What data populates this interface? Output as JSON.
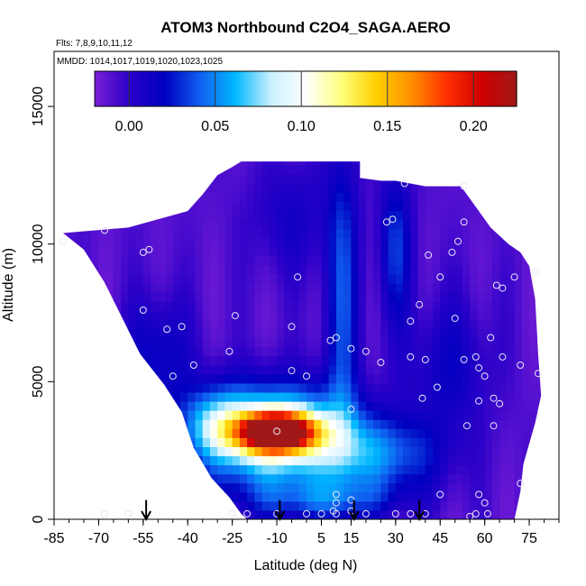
{
  "chart_data": {
    "type": "heatmap",
    "title": "ATOM3 Northbound C2O4_SAGA.AERO",
    "flights_label": "Flts: 7,8,9,10,11,12",
    "dates_label": "MMDD: 1014,1017,1019,1020,1023,1025",
    "xlabel": "Latitude (deg N)",
    "ylabel": "Altitude (m)",
    "xlim": [
      -85,
      85
    ],
    "ylim": [
      0,
      17000
    ],
    "x_ticks": [
      -85,
      -70,
      -55,
      -40,
      -25,
      -10,
      5,
      15,
      30,
      45,
      60,
      75
    ],
    "x_tick_labels": [
      "-85",
      "-70",
      "-55",
      "-40",
      "-25",
      "-10",
      "5",
      "15",
      "30",
      "45",
      "60",
      "75"
    ],
    "y_ticks": [
      0,
      5000,
      10000,
      15000
    ],
    "y_tick_labels": [
      "0",
      "5000",
      "10000",
      "15000"
    ],
    "colorbar": {
      "range": [
        -0.02,
        0.225
      ],
      "ticks": [
        0.0,
        0.05,
        0.1,
        0.15,
        0.2
      ],
      "tick_labels": [
        "0.00",
        "0.05",
        "0.10",
        "0.15",
        "0.20"
      ],
      "colors": [
        "#7a1fd6",
        "#2a00c8",
        "#0000c0",
        "#1060f0",
        "#00b8ff",
        "#c8f0ff",
        "#ffffff",
        "#ffff80",
        "#ffd000",
        "#ff9000",
        "#ff3000",
        "#d00000",
        "#a01818"
      ]
    },
    "field": {
      "background_value": -0.01,
      "boundary_left": [
        [
          -82,
          10400
        ],
        [
          -75,
          9800
        ],
        [
          -68,
          8600
        ],
        [
          -62,
          7300
        ],
        [
          -56,
          6000
        ],
        [
          -48,
          4900
        ],
        [
          -42,
          3900
        ],
        [
          -38,
          2600
        ],
        [
          -32,
          1500
        ],
        [
          -26,
          800
        ],
        [
          -22,
          200
        ],
        [
          -20,
          0
        ]
      ],
      "boundary_top": [
        [
          -82,
          10400
        ],
        [
          -60,
          10600
        ],
        [
          -40,
          11200
        ],
        [
          -35,
          11800
        ],
        [
          -30,
          12500
        ],
        [
          -25,
          12800
        ],
        [
          -22,
          13000
        ],
        [
          -5,
          13000
        ],
        [
          18,
          13000
        ],
        [
          18,
          12400
        ],
        [
          25,
          12300
        ],
        [
          30,
          12300
        ],
        [
          40,
          12100
        ],
        [
          52,
          12100
        ],
        [
          58,
          11200
        ],
        [
          62,
          10600
        ],
        [
          68,
          10000
        ],
        [
          72,
          9700
        ],
        [
          75,
          9200
        ]
      ],
      "boundary_right": [
        [
          75,
          9200
        ],
        [
          77,
          8000
        ],
        [
          78,
          6000
        ],
        [
          79,
          4500
        ],
        [
          77,
          3500
        ],
        [
          73,
          2000
        ],
        [
          72,
          1000
        ],
        [
          70,
          0
        ]
      ],
      "blobs": [
        {
          "name": "peak",
          "lat": -10,
          "alt": 3200,
          "sx": 9,
          "sy": 500,
          "amp": 0.225
        },
        {
          "name": "plume-core",
          "lat": -10,
          "alt": 3000,
          "sx": 18,
          "sy": 1300,
          "amp": 0.11
        },
        {
          "name": "plume-tail",
          "lat": 25,
          "alt": 2300,
          "sx": 14,
          "sy": 1000,
          "amp": 0.05
        },
        {
          "name": "plume-west",
          "lat": -30,
          "alt": 3500,
          "sx": 8,
          "sy": 900,
          "amp": 0.05
        },
        {
          "name": "low-level",
          "lat": 5,
          "alt": 700,
          "sx": 18,
          "sy": 500,
          "amp": 0.035
        },
        {
          "name": "column-12",
          "lat": 12,
          "alt": 8000,
          "sx": 4,
          "sy": 4000,
          "amp": 0.045
        },
        {
          "name": "column-30",
          "lat": 30,
          "alt": 10000,
          "sx": 4,
          "sy": 2000,
          "amp": 0.04
        },
        {
          "name": "mid-west",
          "lat": -50,
          "alt": 6000,
          "sx": 8,
          "sy": 1500,
          "amp": 0.03
        },
        {
          "name": "mid-north",
          "lat": 48,
          "alt": 5500,
          "sx": 10,
          "sy": 1800,
          "amp": 0.025
        },
        {
          "name": "upper-center",
          "lat": -5,
          "alt": 11000,
          "sx": 10,
          "sy": 1500,
          "amp": 0.02
        }
      ]
    },
    "sample_points": [
      [
        -82,
        10100
      ],
      [
        -68,
        10500
      ],
      [
        -55,
        9700
      ],
      [
        -53,
        9800
      ],
      [
        -55,
        7600
      ],
      [
        -47,
        6900
      ],
      [
        -42,
        7000
      ],
      [
        -38,
        5600
      ],
      [
        -45,
        5200
      ],
      [
        -24,
        7400
      ],
      [
        -26,
        6100
      ],
      [
        -3,
        8800
      ],
      [
        -5,
        7000
      ],
      [
        -5,
        5400
      ],
      [
        0,
        5200
      ],
      [
        -10,
        3200
      ],
      [
        8,
        6500
      ],
      [
        10,
        6600
      ],
      [
        15,
        6200
      ],
      [
        20,
        6100
      ],
      [
        15,
        4000
      ],
      [
        10,
        2200
      ],
      [
        10,
        900
      ],
      [
        10,
        600
      ],
      [
        9,
        300
      ],
      [
        10,
        200
      ],
      [
        15,
        700
      ],
      [
        15,
        300
      ],
      [
        -25,
        200
      ],
      [
        -20,
        200
      ],
      [
        -10,
        200
      ],
      [
        0,
        200
      ],
      [
        5,
        200
      ],
      [
        20,
        200
      ],
      [
        30,
        200
      ],
      [
        35,
        200
      ],
      [
        40,
        200
      ],
      [
        27,
        10800
      ],
      [
        29,
        10900
      ],
      [
        33,
        12200
      ],
      [
        41,
        9600
      ],
      [
        49,
        9700
      ],
      [
        53,
        12100
      ],
      [
        53,
        10800
      ],
      [
        51,
        10100
      ],
      [
        45,
        8800
      ],
      [
        38,
        7800
      ],
      [
        35,
        7200
      ],
      [
        50,
        7300
      ],
      [
        64,
        8500
      ],
      [
        66,
        8400
      ],
      [
        70,
        8800
      ],
      [
        77,
        9000
      ],
      [
        40,
        5800
      ],
      [
        35,
        5900
      ],
      [
        25,
        5700
      ],
      [
        53,
        5800
      ],
      [
        57,
        5900
      ],
      [
        58,
        5500
      ],
      [
        62,
        6600
      ],
      [
        66,
        5900
      ],
      [
        72,
        5600
      ],
      [
        78,
        5300
      ],
      [
        60,
        5200
      ],
      [
        58,
        4300
      ],
      [
        65,
        4200
      ],
      [
        63,
        4400
      ],
      [
        44,
        4800
      ],
      [
        39,
        4400
      ],
      [
        54,
        3400
      ],
      [
        63,
        3400
      ],
      [
        45,
        900
      ],
      [
        58,
        900
      ],
      [
        60,
        600
      ],
      [
        72,
        1300
      ],
      [
        55,
        100
      ],
      [
        57,
        200
      ],
      [
        61,
        200
      ],
      [
        -68,
        200
      ],
      [
        -60,
        200
      ]
    ],
    "arrows_lat": [
      -54,
      -9,
      16,
      38
    ],
    "arrow_shaft": [
      0,
      700
    ]
  }
}
